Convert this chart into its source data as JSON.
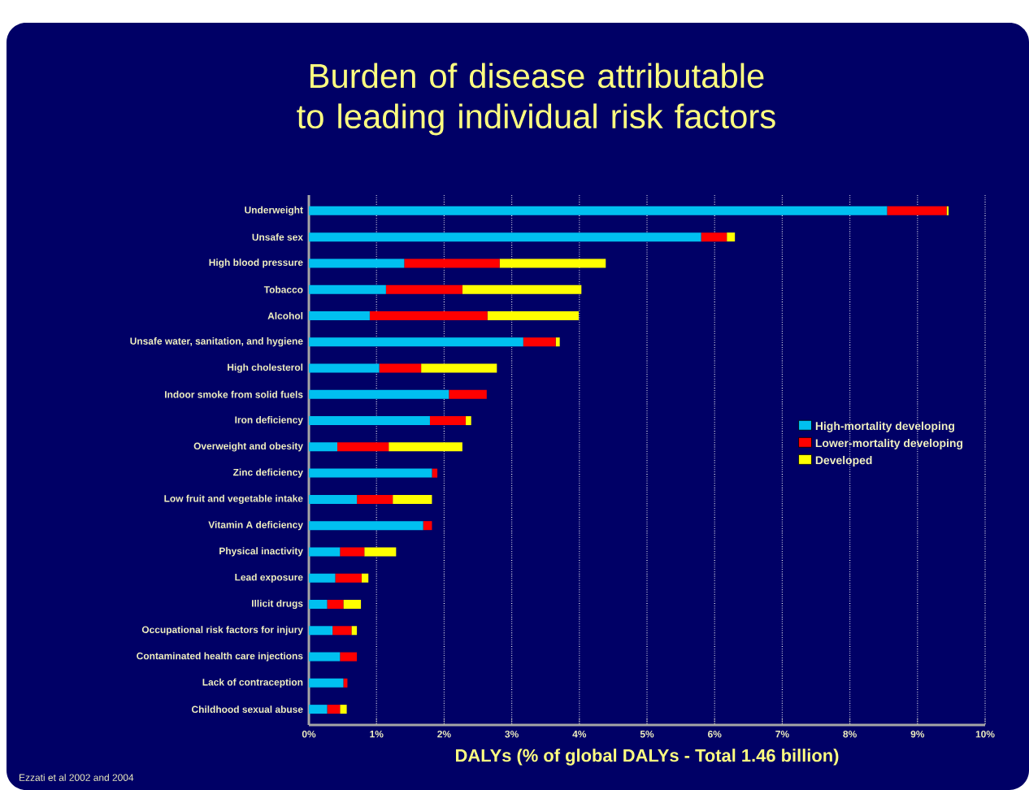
{
  "chart_data": {
    "type": "bar",
    "orientation": "horizontal",
    "stacked": true,
    "title": "Burden of disease attributable to leading individual risk factors",
    "xlabel": "DALYs (% of global DALYs - Total 1.46 billion)",
    "annotations": [
      "Ezzati et al 2002 and 2004"
    ],
    "categories": [
      "Underweight",
      "Unsafe sex",
      "High blood pressure",
      "Tobacco",
      "Alcohol",
      "Unsafe water, sanitation, and hygiene",
      "High cholesterol",
      "Indoor smoke from solid fuels",
      "Iron deficiency",
      "Overweight and obesity",
      "Zinc deficiency",
      "Low fruit and vegetable intake",
      "Vitamin A deficiency",
      "Physical inactivity",
      "Lead exposure",
      "Illicit drugs",
      "Occupational risk factors for injury",
      "Contaminated health care injections",
      "Lack of contraception",
      "Childhood sexual abuse"
    ],
    "series": [
      {
        "name": "High-mortality developing",
        "color": "#00c0f0",
        "values": [
          8.55,
          5.8,
          1.41,
          1.14,
          0.9,
          3.17,
          1.04,
          2.07,
          1.79,
          0.42,
          1.82,
          0.71,
          1.69,
          0.46,
          0.39,
          0.27,
          0.35,
          0.46,
          0.51,
          0.27
        ]
      },
      {
        "name": "Lower-mortality developing",
        "color": "#ff0000",
        "values": [
          0.88,
          0.38,
          1.41,
          1.13,
          1.74,
          0.48,
          0.62,
          0.56,
          0.53,
          0.76,
          0.08,
          0.53,
          0.13,
          0.36,
          0.39,
          0.24,
          0.28,
          0.25,
          0.06,
          0.19
        ]
      },
      {
        "name": "Developed",
        "color": "#ffff00",
        "values": [
          0.03,
          0.12,
          1.57,
          1.76,
          1.35,
          0.06,
          1.12,
          null,
          0.08,
          1.09,
          null,
          0.58,
          null,
          0.47,
          0.1,
          0.26,
          0.08,
          null,
          null,
          0.1
        ]
      }
    ],
    "xlim": [
      0,
      10
    ],
    "xticks": [
      {
        "value": 0,
        "label": "0%"
      },
      {
        "value": 1,
        "label": "1%"
      },
      {
        "value": 2,
        "label": "2%"
      },
      {
        "value": 3,
        "label": "3%"
      },
      {
        "value": 4,
        "label": "4%"
      },
      {
        "value": 5,
        "label": "5%"
      },
      {
        "value": 6,
        "label": "6%"
      },
      {
        "value": 7,
        "label": "7%"
      },
      {
        "value": 8,
        "label": "8%"
      },
      {
        "value": 9,
        "label": "9%"
      },
      {
        "value": 10,
        "label": "10%"
      }
    ],
    "grid": "x",
    "legend": "right"
  }
}
